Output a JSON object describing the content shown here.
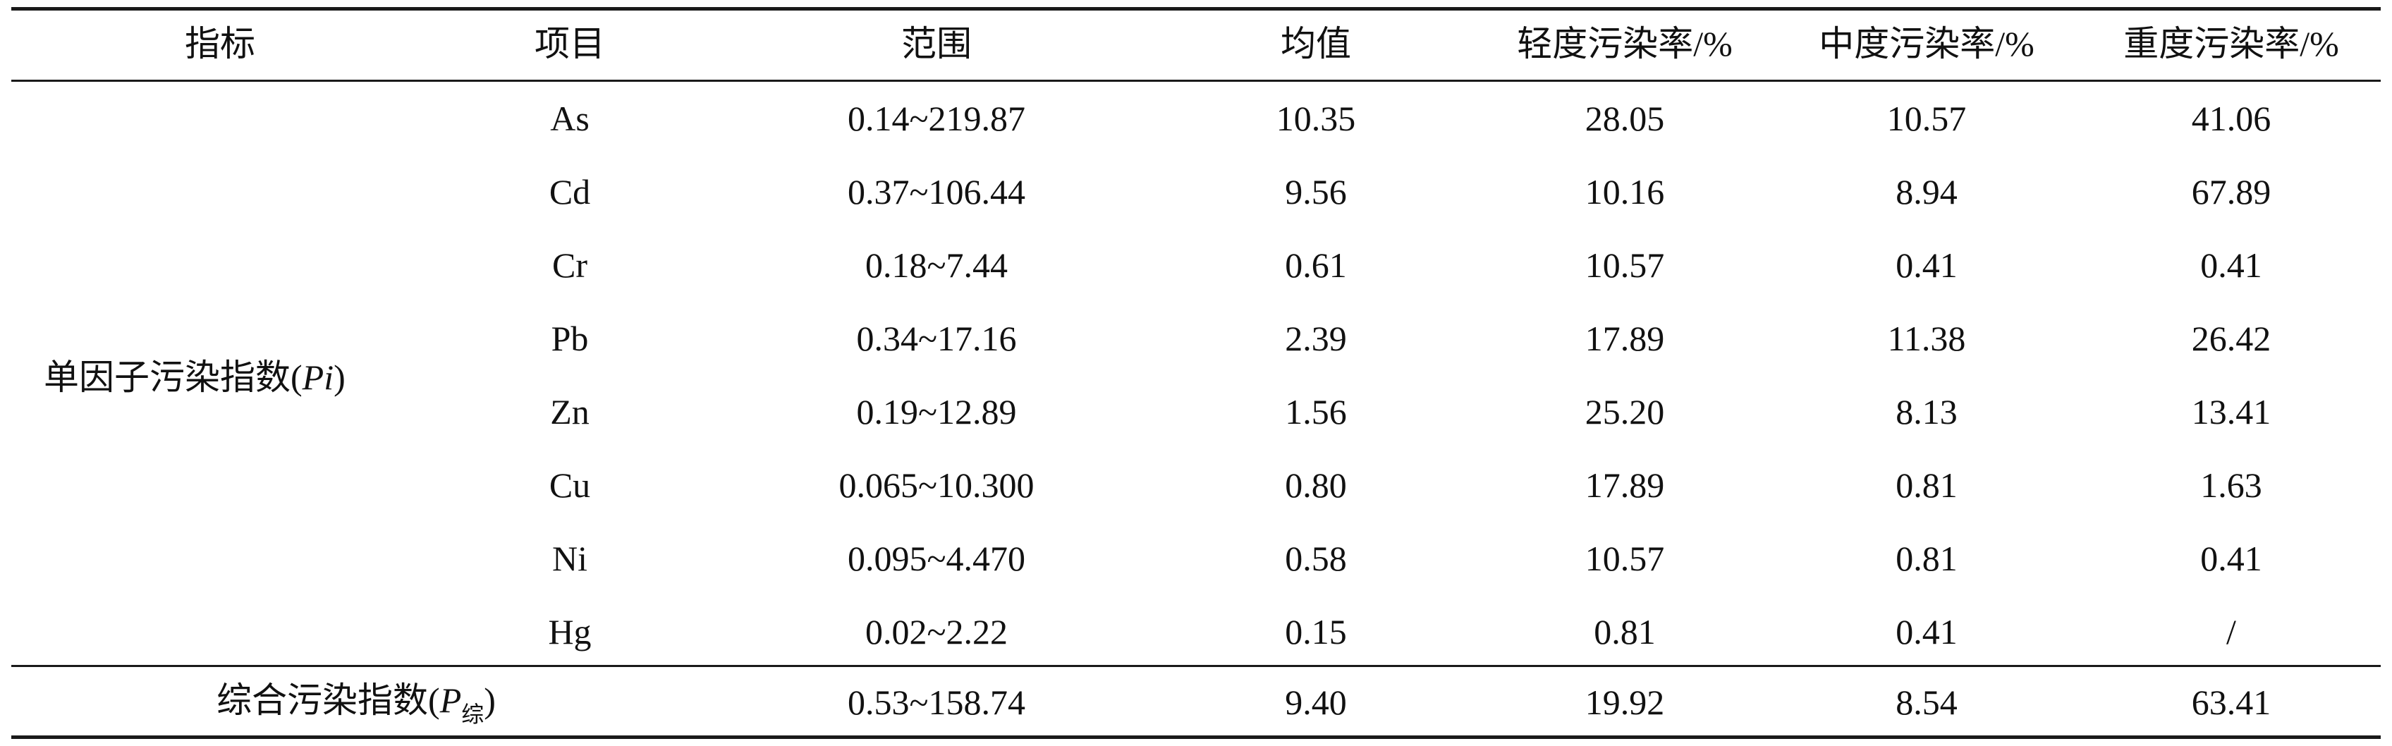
{
  "table": {
    "headers": [
      "指标",
      "项目",
      "范围",
      "均值",
      "轻度污染率/%",
      "中度污染率/%",
      "重度污染率/%"
    ],
    "group_label": {
      "prefix": "单因子污染指数(",
      "var": "Pi",
      "suffix": ")"
    },
    "rows": [
      {
        "item": "As",
        "range": "0.14~219.87",
        "mean": "10.35",
        "light": "28.05",
        "moderate": "10.57",
        "heavy": "41.06"
      },
      {
        "item": "Cd",
        "range": "0.37~106.44",
        "mean": "9.56",
        "light": "10.16",
        "moderate": "8.94",
        "heavy": "67.89"
      },
      {
        "item": "Cr",
        "range": "0.18~7.44",
        "mean": "0.61",
        "light": "10.57",
        "moderate": "0.41",
        "heavy": "0.41"
      },
      {
        "item": "Pb",
        "range": "0.34~17.16",
        "mean": "2.39",
        "light": "17.89",
        "moderate": "11.38",
        "heavy": "26.42"
      },
      {
        "item": "Zn",
        "range": "0.19~12.89",
        "mean": "1.56",
        "light": "25.20",
        "moderate": "8.13",
        "heavy": "13.41"
      },
      {
        "item": "Cu",
        "range": "0.065~10.300",
        "mean": "0.80",
        "light": "17.89",
        "moderate": "0.81",
        "heavy": "1.63"
      },
      {
        "item": "Ni",
        "range": "0.095~4.470",
        "mean": "0.58",
        "light": "10.57",
        "moderate": "0.81",
        "heavy": "0.41"
      },
      {
        "item": "Hg",
        "range": "0.02~2.22",
        "mean": "0.15",
        "light": "0.81",
        "moderate": "0.41",
        "heavy": "/"
      }
    ],
    "summary": {
      "label_prefix": "综合污染指数(",
      "label_var": "P",
      "label_sub": "综",
      "label_suffix": ")",
      "range": "0.53~158.74",
      "mean": "9.40",
      "light": "19.92",
      "moderate": "8.54",
      "heavy": "63.41"
    }
  }
}
